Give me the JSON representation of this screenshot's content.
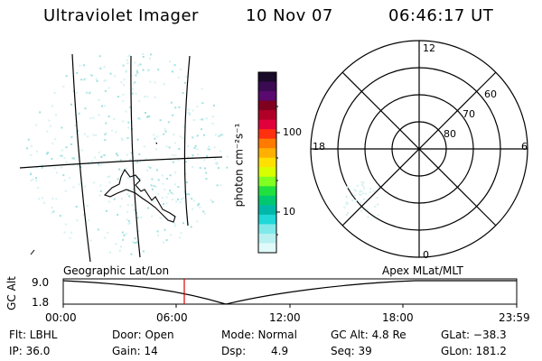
{
  "header": {
    "instrument": "Ultraviolet Imager",
    "date": "10 Nov 07",
    "time": "06:46:17 UT"
  },
  "colorbar": {
    "unit_label": "photon cm⁻²s⁻¹",
    "ticks": [
      "100",
      "10"
    ],
    "colors": [
      "#1a0a2a",
      "#3b0b52",
      "#5a0a6e",
      "#800020",
      "#b00028",
      "#e0003a",
      "#ff3010",
      "#ff7a00",
      "#ffb000",
      "#ffe000",
      "#d8ff00",
      "#80ff20",
      "#20e040",
      "#00c870",
      "#00b8a8",
      "#20d8d8",
      "#80e8e8",
      "#b8f0f0",
      "#e0fafa"
    ]
  },
  "polar": {
    "mlt_labels": {
      "top": "12",
      "right": "6",
      "bottom": "0",
      "left": "18"
    },
    "lat_labels": [
      "60",
      "70",
      "80"
    ]
  },
  "track": {
    "left_title": "Geographic Lat/Lon",
    "right_title": "Apex MLat/MLT",
    "axis_label": "GC Alt",
    "y_max": "9.0",
    "y_min": "1.8",
    "x_ticks": [
      "00:00",
      "06:00",
      "12:00",
      "18:00",
      "23:59"
    ]
  },
  "info": {
    "filter": "Flt: LBHL",
    "ip": "IP: 36.0",
    "door": "Door: Open",
    "gain": "Gain: 14",
    "mode": "Mode: Normal",
    "dsp_label": "Dsp:",
    "dsp_value": "4.9",
    "gcalt": "GC Alt: 4.8 Re",
    "seq": "Seq: 39",
    "glat": "GLat: −38.3",
    "glon": "GLon: 181.2"
  }
}
